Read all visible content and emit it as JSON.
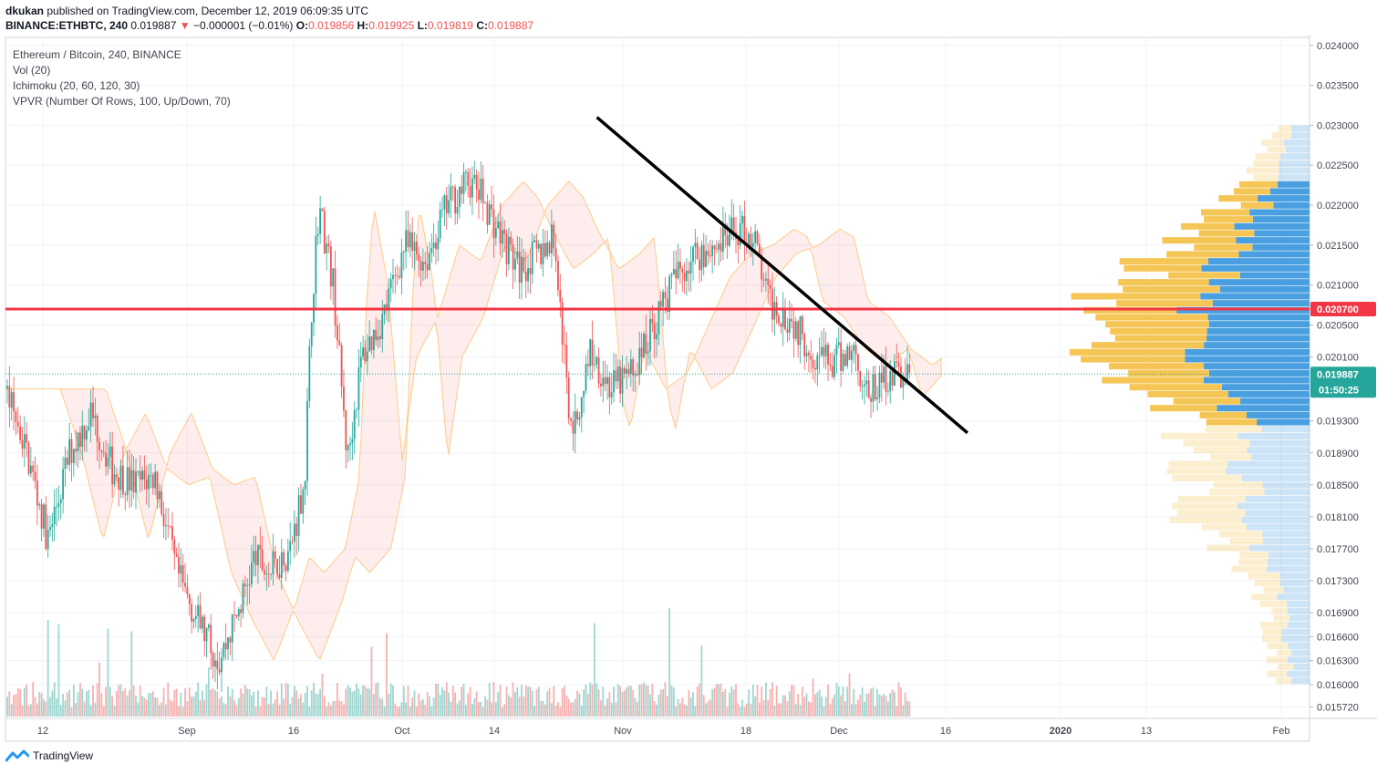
{
  "header": {
    "author": "dkukan",
    "published_text": "published on TradingView.com, December 12, 2019 06:09:35 UTC",
    "symbol": "BINANCE:ETHBTC, 240",
    "last": "0.019887",
    "change_arrow": "▼",
    "change": "−0.000001 (−0.01%)",
    "o_label": "O:",
    "o_value": "0.019856",
    "h_label": "H:",
    "h_value": "0.019925",
    "l_label": "L:",
    "l_value": "0.019819",
    "c_label": "C:",
    "c_value": "0.019887"
  },
  "legend": {
    "title": "Ethereum / Bitcoin, 240, BINANCE",
    "vol": "Vol (20)",
    "ichimoku": "Ichimoku (20, 60, 120, 30)",
    "vpvr": "VPVR (Number Of Rows, 100, Up/Down, 70)"
  },
  "footer": {
    "brand": "TradingView",
    "logo_icon": "tradingview-logo-icon"
  },
  "chart_data": {
    "type": "candlestick",
    "y_ticks": [
      "0.024000",
      "0.023500",
      "0.023000",
      "0.022500",
      "0.022000",
      "0.021500",
      "0.021000",
      "0.020500",
      "0.020100",
      "0.019300",
      "0.018900",
      "0.018500",
      "0.018100",
      "0.017700",
      "0.017300",
      "0.016900",
      "0.016600",
      "0.016300",
      "0.016000",
      "0.015720"
    ],
    "x_ticks": [
      "12",
      "Sep",
      "16",
      "Oct",
      "14",
      "Nov",
      "18",
      "Dec",
      "16",
      "2020",
      "13",
      "Feb"
    ],
    "ylim": [
      0.0156,
      0.0241
    ],
    "horizontal_level": {
      "label": "0.020700",
      "value": 0.0207,
      "color": "#f23645"
    },
    "last_price": {
      "label": "0.019887",
      "value": 0.019887,
      "color": "#26a69a"
    },
    "countdown": "01:50:25",
    "trendline": {
      "from": {
        "date": "2019-10-29",
        "price": 0.0231
      },
      "to": {
        "date": "2019-12-20",
        "price": 0.01915
      },
      "color": "#000000"
    },
    "price_path": [
      [
        "2019-08-07",
        0.0197
      ],
      [
        "2019-08-10",
        0.0189
      ],
      [
        "2019-08-13",
        0.0178
      ],
      [
        "2019-08-16",
        0.0189
      ],
      [
        "2019-08-19",
        0.0194
      ],
      [
        "2019-08-22",
        0.0187
      ],
      [
        "2019-08-25",
        0.0185
      ],
      [
        "2019-08-28",
        0.0186
      ],
      [
        "2019-08-31",
        0.0174
      ],
      [
        "2019-09-03",
        0.0168
      ],
      [
        "2019-09-06",
        0.0163
      ],
      [
        "2019-09-09",
        0.017
      ],
      [
        "2019-09-11",
        0.0176
      ],
      [
        "2019-09-13",
        0.0174
      ],
      [
        "2019-09-16",
        0.0177
      ],
      [
        "2019-09-18",
        0.0186
      ],
      [
        "2019-09-19",
        0.0208
      ],
      [
        "2019-09-20",
        0.022
      ],
      [
        "2019-09-22",
        0.021
      ],
      [
        "2019-09-24",
        0.0188
      ],
      [
        "2019-09-26",
        0.0201
      ],
      [
        "2019-09-29",
        0.0206
      ],
      [
        "2019-10-02",
        0.0215
      ],
      [
        "2019-10-05",
        0.0213
      ],
      [
        "2019-10-08",
        0.022
      ],
      [
        "2019-10-11",
        0.0223
      ],
      [
        "2019-10-13",
        0.0221
      ],
      [
        "2019-10-15",
        0.0217
      ],
      [
        "2019-10-18",
        0.0212
      ],
      [
        "2019-10-21",
        0.0214
      ],
      [
        "2019-10-23",
        0.0216
      ],
      [
        "2019-10-25",
        0.0195
      ],
      [
        "2019-10-26",
        0.0192
      ],
      [
        "2019-10-28",
        0.0202
      ],
      [
        "2019-10-31",
        0.0197
      ],
      [
        "2019-11-03",
        0.0199
      ],
      [
        "2019-11-06",
        0.0205
      ],
      [
        "2019-11-09",
        0.0211
      ],
      [
        "2019-11-12",
        0.0214
      ],
      [
        "2019-11-15",
        0.0215
      ],
      [
        "2019-11-18",
        0.0217
      ],
      [
        "2019-11-20",
        0.0216
      ],
      [
        "2019-11-22",
        0.0208
      ],
      [
        "2019-11-25",
        0.0206
      ],
      [
        "2019-11-28",
        0.0202
      ],
      [
        "2019-12-01",
        0.02
      ],
      [
        "2019-12-04",
        0.0202
      ],
      [
        "2019-12-06",
        0.0196
      ],
      [
        "2019-12-09",
        0.0199
      ],
      [
        "2019-12-12",
        0.01989
      ]
    ],
    "colors": {
      "up": "#26a69a",
      "down": "#ef5350",
      "vpvr_up": "#4a9fe0",
      "vpvr_down": "#f5c655"
    }
  }
}
